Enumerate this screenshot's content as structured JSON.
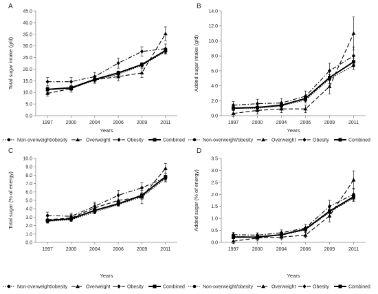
{
  "figure": {
    "legend_entries": [
      "Non-overweight/obesity",
      "Overweight",
      "Obesity",
      "Combined"
    ]
  },
  "chart_data": [
    {
      "type": "line",
      "panel_label": "A",
      "title": "",
      "xlabel": "Years",
      "ylabel": "Total sugar intake (g/d)",
      "categories": [
        "1997",
        "2000",
        "2004",
        "2006",
        "2009",
        "2011"
      ],
      "ylim": [
        0,
        45
      ],
      "yticks": [
        "0.0",
        "5.0",
        "10.0",
        "15.0",
        "20.0",
        "25.0",
        "30.0",
        "35.0",
        "40.0",
        "45.0"
      ],
      "grid": false,
      "legend": "bottom",
      "series": [
        {
          "name": "Non-overweight/obesity",
          "values": [
            11.2,
            11.8,
            15.2,
            17.8,
            21.6,
            27.6
          ],
          "errors": [
            1.2,
            1.0,
            1.0,
            1.0,
            1.0,
            1.2
          ]
        },
        {
          "name": "Overweight",
          "values": [
            9.6,
            11.6,
            15.4,
            16.8,
            18.4,
            35.2
          ],
          "errors": [
            1.2,
            1.5,
            1.5,
            1.8,
            2.0,
            3.0
          ]
        },
        {
          "name": "Obesity",
          "values": [
            14.6,
            14.6,
            16.8,
            22.6,
            27.6,
            28.8
          ],
          "errors": [
            1.8,
            1.8,
            1.8,
            2.2,
            2.0,
            2.0
          ]
        },
        {
          "name": "Combined",
          "values": [
            11.3,
            12.0,
            15.6,
            18.4,
            22.0,
            28.0
          ],
          "errors": [
            0.8,
            0.8,
            0.8,
            0.8,
            0.8,
            0.8
          ]
        }
      ]
    },
    {
      "type": "line",
      "panel_label": "B",
      "title": "",
      "xlabel": "Years",
      "ylabel": "Added sugar intake (g/d)",
      "categories": [
        "1997",
        "2000",
        "2004",
        "2006",
        "2009",
        "2011"
      ],
      "ylim": [
        0,
        14
      ],
      "yticks": [
        "0.0",
        "2.0",
        "4.0",
        "6.0",
        "8.0",
        "10.0",
        "12.0",
        "14.0"
      ],
      "grid": false,
      "legend": "bottom",
      "series": [
        {
          "name": "Non-overweight/obesity",
          "values": [
            1.0,
            1.0,
            1.3,
            2.1,
            4.9,
            6.7
          ],
          "errors": [
            0.3,
            0.3,
            0.3,
            0.4,
            0.6,
            0.5
          ]
        },
        {
          "name": "Overweight",
          "values": [
            0.3,
            0.7,
            0.9,
            0.9,
            3.9,
            11.0
          ],
          "errors": [
            0.4,
            0.5,
            0.5,
            0.5,
            1.0,
            2.2
          ]
        },
        {
          "name": "Obesity",
          "values": [
            1.4,
            1.6,
            1.7,
            2.6,
            6.0,
            8.0
          ],
          "errors": [
            0.5,
            0.6,
            0.6,
            0.7,
            1.0,
            1.2
          ]
        },
        {
          "name": "Combined",
          "values": [
            1.0,
            1.1,
            1.4,
            2.3,
            5.1,
            7.2
          ],
          "errors": [
            0.2,
            0.2,
            0.2,
            0.3,
            0.4,
            0.4
          ]
        }
      ]
    },
    {
      "type": "line",
      "panel_label": "C",
      "title": "",
      "xlabel": "Years",
      "ylabel": "Total sugar (% of energy)",
      "categories": [
        "1997",
        "2000",
        "2004",
        "2006",
        "2009",
        "2011"
      ],
      "ylim": [
        0,
        10
      ],
      "yticks": [
        "0.0",
        "1.0",
        "2.0",
        "3.0",
        "4.0",
        "5.0",
        "6.0",
        "7.0",
        "8.0",
        "9.0",
        "10.0"
      ],
      "grid": false,
      "legend": "bottom",
      "series": [
        {
          "name": "Non-overweight/obesity",
          "values": [
            2.5,
            2.7,
            3.6,
            4.5,
            5.4,
            7.6
          ],
          "errors": [
            0.2,
            0.2,
            0.2,
            0.2,
            0.3,
            0.3
          ]
        },
        {
          "name": "Overweight",
          "values": [
            2.7,
            2.9,
            4.1,
            5.0,
            5.4,
            8.8
          ],
          "errors": [
            0.4,
            0.4,
            0.5,
            0.6,
            0.8,
            0.6
          ]
        },
        {
          "name": "Obesity",
          "values": [
            3.2,
            3.1,
            4.3,
            5.6,
            6.5,
            7.7
          ],
          "errors": [
            0.4,
            0.4,
            0.5,
            0.6,
            0.6,
            0.5
          ]
        },
        {
          "name": "Combined",
          "values": [
            2.6,
            2.8,
            3.8,
            4.6,
            5.6,
            7.8
          ],
          "errors": [
            0.15,
            0.15,
            0.15,
            0.2,
            0.2,
            0.2
          ]
        }
      ]
    },
    {
      "type": "line",
      "panel_label": "D",
      "title": "",
      "xlabel": "Years",
      "ylabel": "Added sugar (% of energy)",
      "categories": [
        "1997",
        "2000",
        "2004",
        "2006",
        "2009",
        "2011"
      ],
      "ylim": [
        0,
        3.5
      ],
      "yticks": [
        "0.0",
        "0.5",
        "1.0",
        "1.5",
        "2.0",
        "2.5",
        "3.0",
        "3.5"
      ],
      "grid": false,
      "legend": "bottom",
      "series": [
        {
          "name": "Non-overweight/obesity",
          "values": [
            0.25,
            0.22,
            0.3,
            0.52,
            1.25,
            1.85
          ],
          "errors": [
            0.06,
            0.06,
            0.07,
            0.1,
            0.15,
            0.15
          ]
        },
        {
          "name": "Overweight",
          "values": [
            0.05,
            0.18,
            0.22,
            0.3,
            1.1,
            2.6
          ],
          "errors": [
            0.1,
            0.12,
            0.12,
            0.12,
            0.25,
            0.38
          ]
        },
        {
          "name": "Obesity",
          "values": [
            0.32,
            0.3,
            0.4,
            0.6,
            1.5,
            2.0
          ],
          "errors": [
            0.1,
            0.1,
            0.12,
            0.15,
            0.25,
            0.25
          ]
        },
        {
          "name": "Combined",
          "values": [
            0.22,
            0.22,
            0.32,
            0.55,
            1.3,
            1.9
          ],
          "errors": [
            0.05,
            0.05,
            0.06,
            0.07,
            0.1,
            0.1
          ]
        }
      ]
    }
  ]
}
